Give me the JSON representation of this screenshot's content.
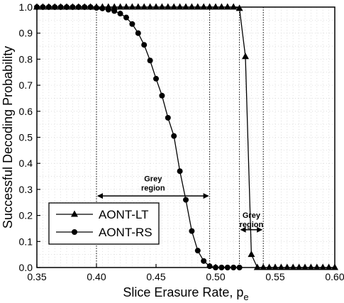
{
  "chart_data": {
    "type": "line",
    "xlabel": "Slice Erasure Rate, p",
    "xlabel_subscript": "e",
    "ylabel": "Successful Decoding Probability",
    "xlim": [
      0.35,
      0.6
    ],
    "ylim": [
      0.0,
      1.0
    ],
    "x_ticks": [
      "0.35",
      "0.40",
      "0.45",
      "0.50",
      "0.55",
      "0.60"
    ],
    "y_ticks": [
      "0.0",
      "0.1",
      "0.2",
      "0.3",
      "0.4",
      "0.5",
      "0.6",
      "0.7",
      "0.8",
      "0.9",
      "1.0"
    ],
    "grid": true,
    "legend_position": "bottom-left",
    "series": [
      {
        "name": "AONT-LT",
        "marker": "triangle",
        "points": [
          [
            0.35,
            1.0
          ],
          [
            0.355,
            1.0
          ],
          [
            0.36,
            1.0
          ],
          [
            0.365,
            1.0
          ],
          [
            0.37,
            1.0
          ],
          [
            0.375,
            1.0
          ],
          [
            0.38,
            1.0
          ],
          [
            0.385,
            1.0
          ],
          [
            0.39,
            1.0
          ],
          [
            0.395,
            1.0
          ],
          [
            0.4,
            1.0
          ],
          [
            0.405,
            1.0
          ],
          [
            0.41,
            1.0
          ],
          [
            0.415,
            1.0
          ],
          [
            0.42,
            1.0
          ],
          [
            0.425,
            1.0
          ],
          [
            0.43,
            1.0
          ],
          [
            0.435,
            1.0
          ],
          [
            0.44,
            1.0
          ],
          [
            0.445,
            1.0
          ],
          [
            0.45,
            1.0
          ],
          [
            0.455,
            1.0
          ],
          [
            0.46,
            1.0
          ],
          [
            0.465,
            1.0
          ],
          [
            0.47,
            1.0
          ],
          [
            0.475,
            1.0
          ],
          [
            0.48,
            1.0
          ],
          [
            0.485,
            1.0
          ],
          [
            0.49,
            1.0
          ],
          [
            0.495,
            1.0
          ],
          [
            0.5,
            1.0
          ],
          [
            0.505,
            1.0
          ],
          [
            0.51,
            1.0
          ],
          [
            0.515,
            1.0
          ],
          [
            0.52,
            0.995
          ],
          [
            0.525,
            0.81
          ],
          [
            0.53,
            0.05
          ],
          [
            0.535,
            0.0
          ],
          [
            0.54,
            0.0
          ],
          [
            0.545,
            0.0
          ],
          [
            0.55,
            0.0
          ],
          [
            0.555,
            0.0
          ],
          [
            0.56,
            0.0
          ],
          [
            0.565,
            0.0
          ],
          [
            0.57,
            0.0
          ],
          [
            0.575,
            0.0
          ],
          [
            0.58,
            0.0
          ],
          [
            0.585,
            0.0
          ],
          [
            0.59,
            0.0
          ],
          [
            0.595,
            0.0
          ],
          [
            0.6,
            0.0
          ]
        ]
      },
      {
        "name": "AONT-RS",
        "marker": "circle",
        "points": [
          [
            0.35,
            1.0
          ],
          [
            0.355,
            1.0
          ],
          [
            0.36,
            1.0
          ],
          [
            0.365,
            1.0
          ],
          [
            0.37,
            1.0
          ],
          [
            0.375,
            1.0
          ],
          [
            0.38,
            1.0
          ],
          [
            0.385,
            1.0
          ],
          [
            0.39,
            1.0
          ],
          [
            0.395,
            1.0
          ],
          [
            0.4,
            0.997
          ],
          [
            0.405,
            0.995
          ],
          [
            0.41,
            0.99
          ],
          [
            0.415,
            0.985
          ],
          [
            0.42,
            0.975
          ],
          [
            0.425,
            0.96
          ],
          [
            0.43,
            0.935
          ],
          [
            0.435,
            0.9
          ],
          [
            0.44,
            0.855
          ],
          [
            0.445,
            0.795
          ],
          [
            0.45,
            0.725
          ],
          [
            0.455,
            0.66
          ],
          [
            0.46,
            0.575
          ],
          [
            0.465,
            0.505
          ],
          [
            0.47,
            0.37
          ],
          [
            0.475,
            0.26
          ],
          [
            0.48,
            0.14
          ],
          [
            0.485,
            0.065
          ],
          [
            0.49,
            0.025
          ],
          [
            0.495,
            0.005
          ],
          [
            0.5,
            0.0
          ],
          [
            0.505,
            0.0
          ],
          [
            0.51,
            0.0
          ],
          [
            0.515,
            0.0
          ],
          [
            0.52,
            0.0
          ]
        ]
      }
    ],
    "annotations": [
      {
        "label": "Grey\nregion",
        "x_range": [
          0.4,
          0.495
        ],
        "arrow_y": 0.275,
        "label_y": 0.32,
        "bound_top": 1.0
      },
      {
        "label": "Grey\nregion",
        "x_range": [
          0.52,
          0.54
        ],
        "arrow_y": 0.145,
        "label_y": 0.18,
        "bound_top": 1.0
      }
    ]
  }
}
